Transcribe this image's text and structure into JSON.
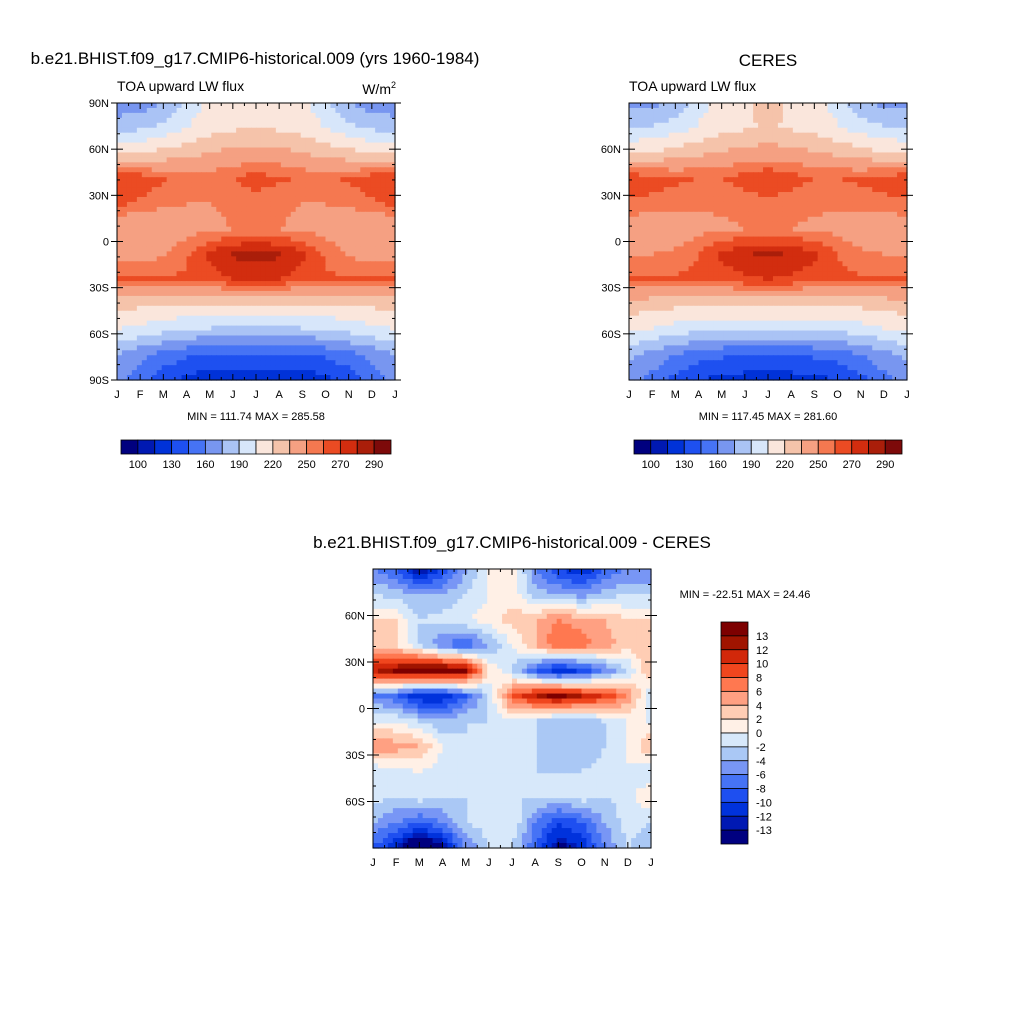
{
  "colors": {
    "absolute": [
      "#00007f",
      "#0019b2",
      "#0032d8",
      "#1e50f0",
      "#4673f5",
      "#7896f0",
      "#aac3f5",
      "#d7e6fa",
      "#fae6dc",
      "#f5c3aa",
      "#f5a082",
      "#f57850",
      "#eb4b23",
      "#d22d0f",
      "#aa1e0a",
      "#7d0a0a"
    ],
    "difference": [
      "#000080",
      "#0019b3",
      "#0032dc",
      "#1e4ff0",
      "#4673f5",
      "#7896f5",
      "#aac8f5",
      "#d7e8fa",
      "#fff0e6",
      "#ffcdb4",
      "#ffa082",
      "#ff7850",
      "#f0461e",
      "#d2280a",
      "#a01400",
      "#7d0000"
    ]
  },
  "panels": {
    "model": {
      "title": "b.e21.BHIST.f09_g17.CMIP6-historical.009 (yrs 1960-1984)",
      "left_label": "TOA upward LW flux",
      "units": "W/m",
      "units_sup": "2",
      "stats": "MIN = 111.74 MAX = 285.58",
      "y_tick_labels": [
        "90N",
        "60N",
        "30N",
        "0",
        "30S",
        "60S",
        "90S"
      ],
      "x_tick_labels": [
        "J",
        "F",
        "M",
        "A",
        "M",
        "J",
        "J",
        "A",
        "S",
        "O",
        "N",
        "D",
        "J"
      ],
      "colorbar_labels": [
        "100",
        "130",
        "160",
        "190",
        "220",
        "250",
        "270",
        "290"
      ]
    },
    "obs": {
      "title": "CERES",
      "left_label": "TOA upward LW flux",
      "stats": "MIN = 117.45 MAX = 281.60",
      "y_tick_labels": [
        "60N",
        "30N",
        "0",
        "30S",
        "60S"
      ],
      "x_tick_labels": [
        "J",
        "F",
        "M",
        "A",
        "M",
        "J",
        "J",
        "A",
        "S",
        "O",
        "N",
        "D",
        "J"
      ],
      "colorbar_labels": [
        "100",
        "130",
        "160",
        "190",
        "220",
        "250",
        "270",
        "290"
      ]
    },
    "diff": {
      "title": "b.e21.BHIST.f09_g17.CMIP6-historical.009 - CERES",
      "stats": "MIN = -22.51 MAX =  24.46",
      "y_tick_labels": [
        "60N",
        "30N",
        "0",
        "30S",
        "60S"
      ],
      "x_tick_labels": [
        "J",
        "F",
        "M",
        "A",
        "M",
        "J",
        "J",
        "A",
        "S",
        "O",
        "N",
        "D",
        "J"
      ],
      "colorbar_labels": [
        "13",
        "12",
        "10",
        "8",
        "6",
        "4",
        "2",
        "0",
        "-2",
        "-4",
        "-6",
        "-8",
        "-10",
        "-12",
        "-13"
      ]
    }
  },
  "chart_data": [
    {
      "type": "heatmap",
      "title": "b.e21.BHIST.f09_g17.CMIP6-historical.009 (yrs 1960-1984)",
      "subtitle": "TOA upward LW flux",
      "units": "W/m2",
      "x": [
        "J",
        "F",
        "M",
        "A",
        "M",
        "J",
        "J",
        "A",
        "S",
        "O",
        "N",
        "D",
        "J"
      ],
      "y": [
        "90N",
        "60N",
        "30N",
        "0",
        "30S",
        "60S",
        "90S"
      ],
      "levels": [
        100,
        115,
        130,
        145,
        160,
        175,
        190,
        205,
        220,
        235,
        250,
        260,
        270,
        280,
        290
      ],
      "min": 111.74,
      "max": 285.58,
      "values": [
        [
          165,
          165,
          175,
          195,
          210,
          218,
          220,
          218,
          210,
          195,
          175,
          165,
          165
        ],
        [
          185,
          188,
          195,
          205,
          213,
          218,
          220,
          218,
          213,
          205,
          195,
          188,
          185
        ],
        [
          218,
          220,
          225,
          230,
          236,
          240,
          242,
          240,
          236,
          230,
          225,
          220,
          218
        ],
        [
          270,
          268,
          262,
          255,
          255,
          260,
          265,
          262,
          258,
          258,
          262,
          268,
          270
        ],
        [
          262,
          258,
          252,
          250,
          250,
          252,
          255,
          252,
          250,
          250,
          252,
          258,
          262
        ],
        [
          235,
          236,
          240,
          245,
          248,
          250,
          252,
          250,
          248,
          245,
          240,
          236,
          235
        ],
        [
          245,
          246,
          248,
          258,
          272,
          282,
          284,
          282,
          272,
          258,
          248,
          246,
          245
        ],
        [
          263,
          262,
          262,
          262,
          265,
          270,
          272,
          270,
          265,
          262,
          262,
          262,
          263
        ],
        [
          225,
          223,
          221,
          220,
          220,
          221,
          222,
          221,
          220,
          220,
          221,
          223,
          225
        ],
        [
          205,
          200,
          195,
          190,
          188,
          186,
          186,
          186,
          188,
          190,
          195,
          200,
          205
        ],
        [
          175,
          165,
          155,
          148,
          145,
          144,
          144,
          144,
          145,
          148,
          155,
          165,
          175
        ],
        [
          165,
          150,
          135,
          125,
          120,
          118,
          118,
          118,
          120,
          125,
          135,
          150,
          165
        ]
      ]
    },
    {
      "type": "heatmap",
      "title": "CERES",
      "subtitle": "TOA upward LW flux",
      "x": [
        "J",
        "F",
        "M",
        "A",
        "M",
        "J",
        "J",
        "A",
        "S",
        "O",
        "N",
        "D",
        "J"
      ],
      "y": [
        "60N",
        "30N",
        "0",
        "30S",
        "60S"
      ],
      "levels": [
        100,
        115,
        130,
        145,
        160,
        175,
        190,
        205,
        220,
        235,
        250,
        260,
        270,
        280,
        290
      ],
      "min": 117.45,
      "max": 281.6,
      "values": [
        [
          170,
          170,
          180,
          198,
          212,
          219,
          222,
          219,
          212,
          198,
          180,
          170,
          170
        ],
        [
          190,
          192,
          198,
          207,
          214,
          219,
          221,
          219,
          214,
          207,
          198,
          192,
          190
        ],
        [
          220,
          222,
          227,
          232,
          237,
          241,
          243,
          241,
          237,
          232,
          227,
          222,
          220
        ],
        [
          268,
          266,
          262,
          260,
          260,
          265,
          270,
          265,
          260,
          260,
          262,
          266,
          268
        ],
        [
          258,
          256,
          254,
          252,
          252,
          254,
          256,
          254,
          252,
          252,
          254,
          256,
          258
        ],
        [
          240,
          240,
          242,
          246,
          248,
          250,
          252,
          250,
          248,
          246,
          242,
          240,
          240
        ],
        [
          248,
          250,
          252,
          260,
          272,
          280,
          281,
          280,
          272,
          260,
          252,
          250,
          248
        ],
        [
          262,
          262,
          262,
          262,
          264,
          268,
          270,
          268,
          264,
          262,
          262,
          262,
          262
        ],
        [
          228,
          226,
          224,
          222,
          222,
          223,
          224,
          223,
          222,
          222,
          224,
          226,
          228
        ],
        [
          208,
          204,
          198,
          194,
          192,
          190,
          190,
          190,
          192,
          194,
          198,
          204,
          208
        ],
        [
          178,
          170,
          160,
          152,
          148,
          146,
          146,
          146,
          148,
          152,
          160,
          170,
          178
        ],
        [
          168,
          155,
          140,
          130,
          125,
          123,
          123,
          123,
          125,
          130,
          140,
          155,
          168
        ]
      ]
    },
    {
      "type": "heatmap",
      "title": "b.e21.BHIST.f09_g17.CMIP6-historical.009 - CERES",
      "x": [
        "J",
        "F",
        "M",
        "A",
        "M",
        "J",
        "J",
        "A",
        "S",
        "O",
        "N",
        "D",
        "J"
      ],
      "y": [
        "60N",
        "30N",
        "0",
        "30S",
        "60S"
      ],
      "levels": [
        -13,
        -12,
        -10,
        -8,
        -6,
        -4,
        -2,
        0,
        2,
        4,
        6,
        8,
        10,
        12,
        13
      ],
      "min": -22.51,
      "max": 24.46,
      "values": [
        [
          -6,
          -8,
          -14,
          -10,
          -4,
          0,
          2,
          -6,
          -10,
          -12,
          -8,
          -6,
          -6
        ],
        [
          -2,
          -3,
          -4,
          -4,
          -2,
          0,
          1,
          -3,
          -4,
          -5,
          -3,
          -2,
          -2
        ],
        [
          2,
          2,
          -2,
          -1,
          0,
          1,
          3,
          4,
          6,
          5,
          4,
          2,
          2
        ],
        [
          3,
          2,
          -2,
          -6,
          -8,
          -4,
          0,
          4,
          8,
          7,
          5,
          3,
          3
        ],
        [
          12,
          14,
          16,
          16,
          14,
          2,
          -2,
          -8,
          -12,
          -10,
          -6,
          -2,
          4
        ],
        [
          -6,
          -8,
          -12,
          -12,
          -8,
          -2,
          8,
          12,
          14,
          12,
          10,
          6,
          -2
        ],
        [
          0,
          0,
          -2,
          -4,
          -2,
          -2,
          0,
          -2,
          -4,
          -4,
          -2,
          0,
          0
        ],
        [
          6,
          5,
          4,
          0,
          -2,
          -2,
          -2,
          -2,
          -4,
          -4,
          -2,
          0,
          4
        ],
        [
          -2,
          -1,
          0,
          -1,
          -2,
          -2,
          -2,
          -2,
          -2,
          -2,
          -1,
          0,
          -2
        ],
        [
          -1,
          -2,
          -1,
          -2,
          -2,
          -1,
          -2,
          -2,
          -2,
          -1,
          -2,
          -1,
          2
        ],
        [
          -4,
          -6,
          -8,
          -6,
          -2,
          -1,
          0,
          -6,
          -10,
          -8,
          -4,
          -1,
          -2
        ],
        [
          -8,
          -12,
          -18,
          -14,
          -6,
          -2,
          -2,
          -8,
          -14,
          -12,
          -6,
          -2,
          -4
        ]
      ]
    }
  ]
}
